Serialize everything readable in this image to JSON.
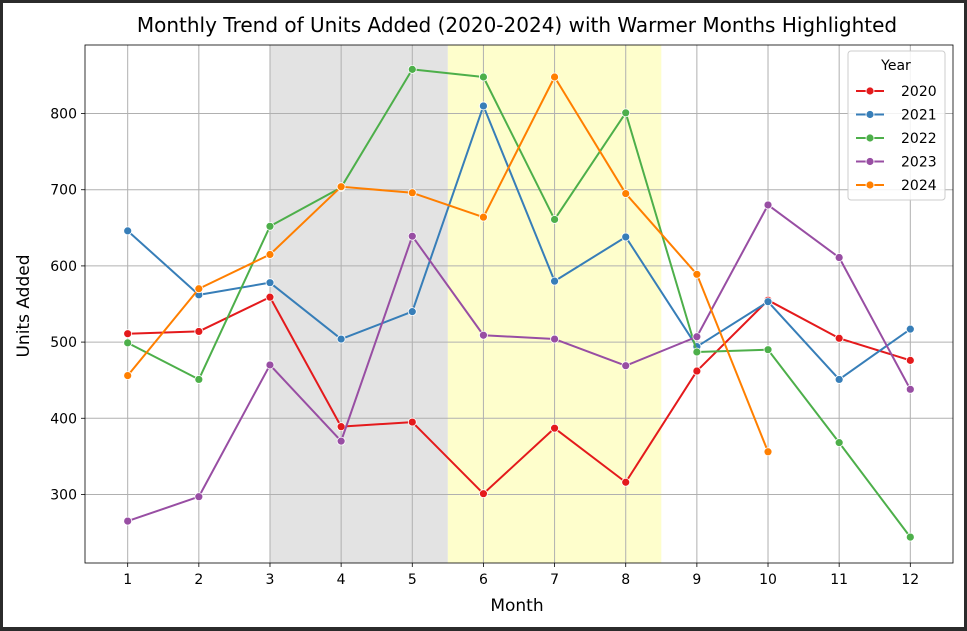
{
  "chart_data": {
    "type": "line",
    "title": "Monthly Trend of Units Added (2020-2024) with Warmer Months Highlighted",
    "xlabel": "Month",
    "ylabel": "Units Added",
    "x": [
      1,
      2,
      3,
      4,
      5,
      6,
      7,
      8,
      9,
      10,
      11,
      12
    ],
    "xlim": [
      0.4,
      12.6
    ],
    "ylim": [
      210,
      890
    ],
    "yticks": [
      300,
      400,
      500,
      600,
      700,
      800
    ],
    "grid": true,
    "legend": {
      "title": "Year",
      "position": "top-right"
    },
    "highlight_bands": [
      {
        "from": 3,
        "to": 5.5,
        "color": "#e3e3e3"
      },
      {
        "from": 5.5,
        "to": 8.5,
        "color": "#fefecc"
      }
    ],
    "series": [
      {
        "name": "2020",
        "color": "#e41a1c",
        "values": [
          511,
          514,
          559,
          389,
          395,
          301,
          387,
          316,
          462,
          555,
          505,
          476
        ]
      },
      {
        "name": "2021",
        "color": "#377eb8",
        "values": [
          646,
          562,
          578,
          504,
          540,
          810,
          580,
          638,
          494,
          553,
          451,
          517
        ]
      },
      {
        "name": "2022",
        "color": "#4daf4a",
        "values": [
          499,
          451,
          652,
          703,
          858,
          848,
          661,
          801,
          487,
          490,
          368,
          244
        ]
      },
      {
        "name": "2023",
        "color": "#984ea3",
        "values": [
          265,
          297,
          470,
          370,
          639,
          509,
          504,
          469,
          507,
          680,
          611,
          438
        ]
      },
      {
        "name": "2024",
        "color": "#ff7f00",
        "values": [
          456,
          570,
          615,
          704,
          696,
          664,
          848,
          695,
          589,
          356,
          null,
          null
        ]
      }
    ]
  }
}
